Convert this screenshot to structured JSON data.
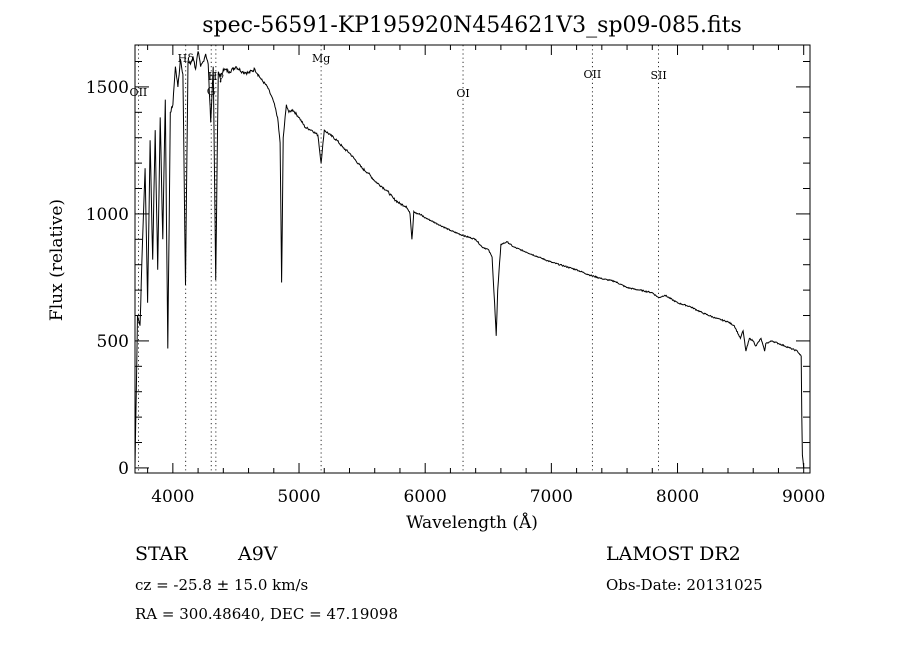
{
  "chart_data": {
    "type": "line",
    "title": "spec-56591-KP195920N454621V3_sp09-085.fits",
    "xlabel": "Wavelength (Å)",
    "ylabel": "Flux (relative)",
    "xlim": [
      3700,
      9050
    ],
    "ylim": [
      -20,
      1665
    ],
    "grid": false,
    "x_major_ticks": [
      4000,
      5000,
      6000,
      7000,
      8000,
      9000
    ],
    "y_major_ticks": [
      0,
      500,
      1000,
      1500
    ],
    "lines": [
      {
        "label": "OII",
        "x": 3727
      },
      {
        "label": "Hδ",
        "x": 4102
      },
      {
        "label": "G",
        "x": 4304
      },
      {
        "label": "Hγ",
        "x": 4341
      },
      {
        "label": "Mg",
        "x": 5175
      },
      {
        "label": "OI",
        "x": 6300
      },
      {
        "label": "OII",
        "x": 7325
      },
      {
        "label": "SII",
        "x": 7850
      }
    ],
    "spectrum": {
      "x": [
        3700,
        3720,
        3740,
        3760,
        3780,
        3800,
        3820,
        3840,
        3860,
        3880,
        3900,
        3920,
        3940,
        3960,
        3980,
        4000,
        4020,
        4040,
        4060,
        4080,
        4100,
        4120,
        4140,
        4160,
        4180,
        4200,
        4220,
        4240,
        4260,
        4280,
        4300,
        4320,
        4340,
        4360,
        4380,
        4400,
        4450,
        4500,
        4550,
        4600,
        4650,
        4700,
        4750,
        4800,
        4830,
        4850,
        4862,
        4875,
        4900,
        4920,
        4950,
        5000,
        5050,
        5100,
        5150,
        5175,
        5200,
        5250,
        5300,
        5350,
        5400,
        5450,
        5500,
        5550,
        5600,
        5650,
        5700,
        5750,
        5800,
        5850,
        5880,
        5895,
        5910,
        5950,
        6000,
        6100,
        6200,
        6300,
        6400,
        6450,
        6500,
        6530,
        6550,
        6563,
        6575,
        6600,
        6650,
        6700,
        6800,
        6900,
        7000,
        7100,
        7200,
        7300,
        7400,
        7500,
        7600,
        7700,
        7800,
        7850,
        7900,
        8000,
        8100,
        8200,
        8300,
        8400,
        8450,
        8498,
        8520,
        8542,
        8570,
        8600,
        8620,
        8662,
        8690,
        8700,
        8750,
        8800,
        8850,
        8900,
        8950,
        8980,
        8985,
        8990,
        9000
      ],
      "y": [
        0,
        600,
        560,
        900,
        1180,
        650,
        1290,
        820,
        1330,
        780,
        1380,
        900,
        1450,
        470,
        1400,
        1430,
        1580,
        1500,
        1610,
        1550,
        720,
        1600,
        1590,
        1620,
        1570,
        1640,
        1580,
        1600,
        1630,
        1590,
        1360,
        1580,
        740,
        1560,
        1540,
        1570,
        1560,
        1580,
        1560,
        1555,
        1570,
        1530,
        1500,
        1440,
        1380,
        1280,
        730,
        1300,
        1430,
        1400,
        1410,
        1380,
        1340,
        1330,
        1310,
        1200,
        1330,
        1310,
        1290,
        1260,
        1240,
        1210,
        1180,
        1160,
        1130,
        1110,
        1090,
        1060,
        1040,
        1030,
        1000,
        900,
        1010,
        1000,
        985,
        960,
        935,
        915,
        900,
        870,
        860,
        830,
        650,
        520,
        700,
        880,
        890,
        870,
        850,
        830,
        810,
        795,
        780,
        760,
        745,
        735,
        710,
        700,
        690,
        670,
        680,
        650,
        635,
        610,
        590,
        575,
        560,
        510,
        540,
        460,
        510,
        500,
        480,
        510,
        460,
        490,
        500,
        490,
        480,
        470,
        460,
        440,
        200,
        50,
        0
      ]
    }
  },
  "footer": {
    "object_class": "STAR",
    "subclass": "A9V",
    "redshift_line": "cz = -25.8 ± 15.0 km/s",
    "coords_line": "RA = 300.48640, DEC =  47.19098",
    "survey": "LAMOST DR2",
    "obs_date": "Obs-Date: 20131025"
  }
}
